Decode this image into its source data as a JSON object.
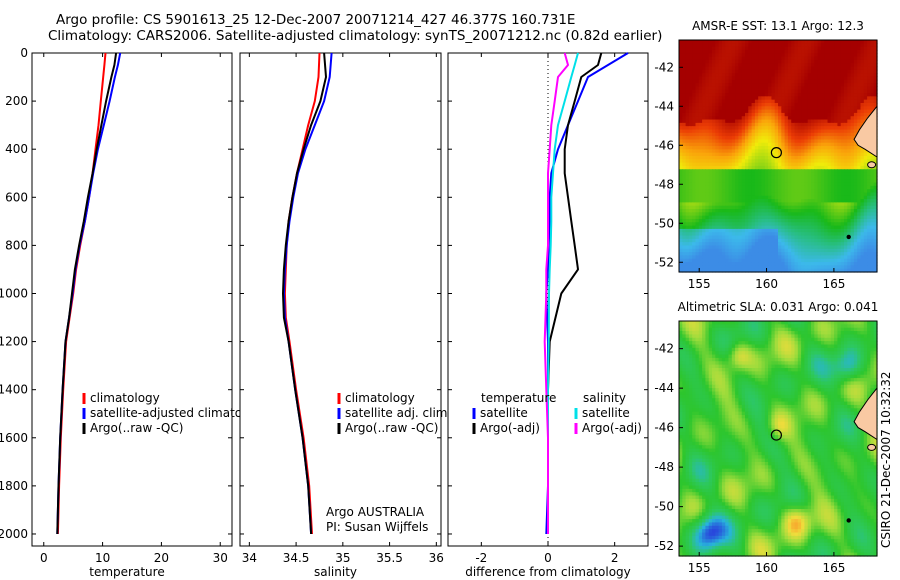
{
  "titles": {
    "line1": "Argo profile: CS 5901613_25 12-Dec-2007 20071214_427 46.377S 160.731E",
    "line2": "Climatology: CARS2006. Satellite-adjusted climatology: synTS_20071212.nc (0.82d earlier)"
  },
  "stamp": "CSIRO 21-Dec-2007 10:32:32",
  "colors": {
    "climatology": "#ff0000",
    "satellite": "#0000ff",
    "argo": "#000000",
    "sal_satellite": "#00e0e8",
    "sal_argo": "#ff00ff",
    "land": "#f9c9a3",
    "sst_warm": "#a00000",
    "sst_green": "#19b819",
    "sla_green": "#2ec62e"
  },
  "chart_data": [
    {
      "type": "line",
      "id": "temperature",
      "xlabel": "temperature",
      "ylabel": "",
      "xlim": [
        -2,
        32
      ],
      "ylim": [
        2050,
        0
      ],
      "xticks": [
        0,
        10,
        20,
        30
      ],
      "yticks": [
        0,
        200,
        400,
        600,
        800,
        1000,
        1200,
        1400,
        1600,
        1800,
        2000
      ],
      "legend": [
        "climatology",
        "satellite-adjusted climatology",
        "Argo(..raw -QC)"
      ],
      "series": [
        {
          "name": "climatology",
          "color": "#ff0000",
          "x": [
            10.5,
            10.3,
            10.1,
            9.7,
            9.3,
            8.8,
            8.3,
            7.7,
            7.0,
            6.2,
            5.5,
            5.0,
            4.4,
            3.8,
            3.3,
            2.9,
            2.6,
            2.4
          ],
          "y": [
            0,
            50,
            100,
            200,
            300,
            400,
            500,
            600,
            700,
            800,
            900,
            1000,
            1100,
            1200,
            1400,
            1600,
            1800,
            2000
          ]
        },
        {
          "name": "satellite-adjusted climatology",
          "color": "#0000ff",
          "x": [
            13.0,
            12.6,
            12.1,
            11.2,
            10.2,
            9.2,
            8.4,
            7.7,
            7.0,
            6.1,
            5.4,
            4.9,
            4.3,
            3.7,
            3.2,
            2.8,
            2.5,
            2.3
          ],
          "y": [
            0,
            50,
            100,
            200,
            300,
            400,
            500,
            600,
            700,
            800,
            900,
            1000,
            1100,
            1200,
            1400,
            1600,
            1800,
            2000
          ]
        },
        {
          "name": "Argo(..raw -QC)",
          "color": "#000000",
          "x": [
            12.3,
            12.0,
            11.5,
            10.6,
            9.8,
            9.0,
            8.3,
            7.5,
            6.8,
            6.0,
            5.3,
            4.8,
            4.3,
            3.7,
            3.2,
            2.8,
            2.5,
            2.3
          ],
          "y": [
            0,
            50,
            100,
            200,
            300,
            400,
            500,
            600,
            700,
            800,
            900,
            1000,
            1100,
            1200,
            1400,
            1600,
            1800,
            2000
          ]
        }
      ]
    },
    {
      "type": "line",
      "id": "salinity",
      "xlabel": "salinity",
      "ylabel": "",
      "xlim": [
        33.9,
        36.05
      ],
      "ylim": [
        2050,
        0
      ],
      "xticks": [
        34,
        34.5,
        35,
        35.5,
        36
      ],
      "xticklabels": [
        "34",
        "34.5",
        "35",
        "35.5",
        "36"
      ],
      "yticks": [
        0,
        200,
        400,
        600,
        800,
        1000,
        1200,
        1400,
        1600,
        1800,
        2000
      ],
      "legend": [
        "climatology",
        "satellite adj. clim.",
        "Argo(..raw -QC)"
      ],
      "annotation": [
        "Argo AUSTRALIA",
        "PI: Susan Wijffels"
      ],
      "series": [
        {
          "name": "climatology",
          "color": "#ff0000",
          "x": [
            34.75,
            34.74,
            34.7,
            34.63,
            34.57,
            34.51,
            34.46,
            34.42,
            34.4,
            34.39,
            34.38,
            34.39,
            34.43,
            34.5,
            34.58,
            34.64,
            34.67
          ],
          "y": [
            0,
            100,
            200,
            300,
            400,
            500,
            600,
            700,
            800,
            900,
            1000,
            1100,
            1200,
            1400,
            1600,
            1800,
            2000
          ]
        },
        {
          "name": "satellite adj. clim.",
          "color": "#0000ff",
          "x": [
            34.88,
            34.86,
            34.8,
            34.7,
            34.6,
            34.52,
            34.47,
            34.43,
            34.4,
            34.38,
            34.37,
            34.38,
            34.42,
            34.49,
            34.57,
            34.63,
            34.66
          ],
          "y": [
            0,
            100,
            200,
            300,
            400,
            500,
            600,
            700,
            800,
            900,
            1000,
            1100,
            1200,
            1400,
            1600,
            1800,
            2000
          ]
        },
        {
          "name": "Argo(..raw -QC)",
          "color": "#000000",
          "x": [
            34.8,
            34.82,
            34.76,
            34.66,
            34.58,
            34.51,
            34.46,
            34.42,
            34.39,
            34.37,
            34.36,
            34.37,
            34.42,
            34.49,
            34.57,
            34.63,
            34.66
          ],
          "y": [
            0,
            100,
            200,
            300,
            400,
            500,
            600,
            700,
            800,
            900,
            1000,
            1100,
            1200,
            1400,
            1600,
            1800,
            2000
          ]
        }
      ]
    },
    {
      "type": "line",
      "id": "difference",
      "xlabel": "difference from climatology",
      "ylabel": "",
      "xlim": [
        -3,
        3
      ],
      "ylim": [
        2050,
        0
      ],
      "xticks": [
        -2,
        0,
        2
      ],
      "yticks": [
        0,
        200,
        400,
        600,
        800,
        1000,
        1200,
        1400,
        1600,
        1800,
        2000
      ],
      "legend_left_title": "temperature",
      "legend_right_title": "salinity",
      "legend": [
        "satellite",
        "Argo(-adj)",
        "satellite",
        "Argo(-adj)"
      ],
      "series": [
        {
          "name": "temperature satellite",
          "color": "#0000ff",
          "x": [
            2.4,
            1.8,
            1.2,
            0.9,
            0.6,
            0.3,
            0.1,
            0.05,
            0.05,
            0.02,
            0.0,
            -0.05,
            0.0,
            0.0,
            0.0,
            0.0,
            -0.05
          ],
          "y": [
            0,
            50,
            100,
            200,
            300,
            400,
            500,
            600,
            700,
            800,
            900,
            1000,
            1200,
            1400,
            1600,
            1800,
            2000
          ]
        },
        {
          "name": "temperature Argo(-adj)",
          "color": "#000000",
          "x": [
            1.6,
            1.5,
            1.0,
            0.8,
            0.6,
            0.5,
            0.5,
            0.6,
            0.7,
            0.8,
            0.9,
            0.4,
            0.05,
            0.0,
            0.0,
            0.0,
            0.0
          ],
          "y": [
            0,
            50,
            100,
            200,
            300,
            400,
            500,
            600,
            700,
            800,
            900,
            1000,
            1200,
            1400,
            1600,
            1800,
            2000
          ]
        },
        {
          "name": "salinity satellite",
          "color": "#00e0e8",
          "x": [
            0.9,
            0.8,
            0.7,
            0.5,
            0.3,
            0.2,
            0.15,
            0.1,
            0.1,
            0.08,
            0.05,
            0.03,
            0.02,
            0.0,
            0.0,
            0.0,
            0.0
          ],
          "y": [
            0,
            50,
            100,
            200,
            300,
            400,
            500,
            600,
            700,
            800,
            900,
            1000,
            1200,
            1400,
            1600,
            1800,
            2000
          ]
        },
        {
          "name": "salinity Argo(-adj)",
          "color": "#ff00ff",
          "x": [
            0.5,
            0.6,
            0.3,
            0.2,
            0.1,
            0.05,
            0.0,
            0.0,
            0.0,
            0.0,
            -0.05,
            -0.05,
            -0.1,
            -0.05,
            0.0,
            0.0,
            0.0
          ],
          "y": [
            0,
            50,
            100,
            200,
            300,
            400,
            500,
            600,
            700,
            800,
            900,
            1000,
            1200,
            1400,
            1600,
            1800,
            2000
          ]
        }
      ]
    },
    {
      "type": "heatmap",
      "id": "sst",
      "title": "AMSR-E SST: 13.1 Argo: 12.3",
      "xlim": [
        153.5,
        168.2
      ],
      "ylim": [
        -52.5,
        -40.6
      ],
      "xticks": [
        155,
        160,
        165
      ],
      "yticks": [
        -42,
        -44,
        -46,
        -48,
        -50,
        -52
      ],
      "marker": {
        "lon": 160.731,
        "lat": -46.377
      }
    },
    {
      "type": "heatmap",
      "id": "sla",
      "title": "Altimetric SLA: 0.031 Argo: 0.041",
      "xlim": [
        153.5,
        168.2
      ],
      "ylim": [
        -52.5,
        -40.6
      ],
      "xticks": [
        155,
        160,
        165
      ],
      "yticks": [
        -42,
        -44,
        -46,
        -48,
        -50,
        -52
      ],
      "marker": {
        "lon": 160.731,
        "lat": -46.377
      }
    }
  ]
}
